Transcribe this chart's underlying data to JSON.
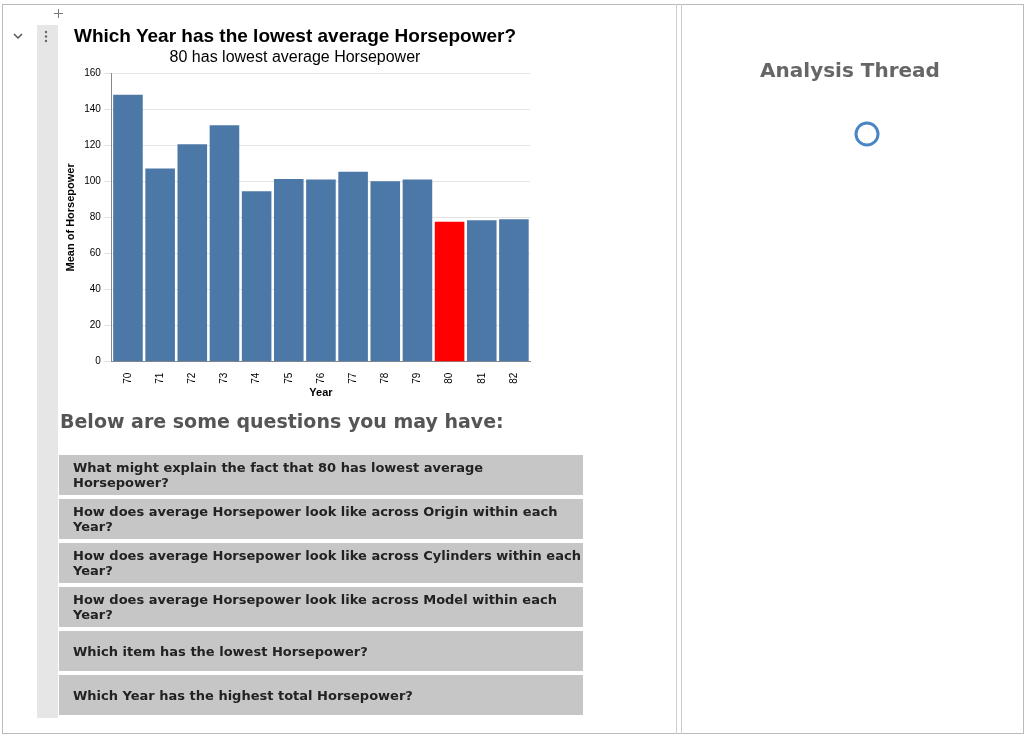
{
  "chart_data": {
    "type": "bar",
    "title": "Which Year has the lowest average Horsepower?",
    "subtitle": "80 has lowest average Horsepower",
    "xlabel": "Year",
    "ylabel": "Mean of Horsepower",
    "categories": [
      "70",
      "71",
      "72",
      "73",
      "74",
      "75",
      "76",
      "77",
      "78",
      "79",
      "80",
      "81",
      "82"
    ],
    "values": [
      148,
      107,
      120.5,
      131,
      94.4,
      101.3,
      101,
      105.2,
      100,
      101,
      77.6,
      78.4,
      79
    ],
    "colors": [
      "#4c78a8",
      "#4c78a8",
      "#4c78a8",
      "#4c78a8",
      "#4c78a8",
      "#4c78a8",
      "#4c78a8",
      "#4c78a8",
      "#4c78a8",
      "#4c78a8",
      "#ff0000",
      "#4c78a8",
      "#4c78a8"
    ],
    "ylim": [
      0,
      160
    ],
    "yticks": [
      0,
      20,
      40,
      60,
      80,
      100,
      120,
      140,
      160
    ],
    "grid": "y",
    "legend": false,
    "annotations": [
      "Below are some questions you may have:",
      "What might explain the fact that 80 has lowest average Horsepower?",
      "How does average Horsepower look like across Origin within each Year?",
      "How does average Horsepower look like across Cylinders within each Year?",
      "How does average Horsepower look like across Model within each Year?",
      "Which item has the lowest Horsepower?",
      "Which Year has the highest total Horsepower?",
      "Analysis Thread"
    ]
  }
}
